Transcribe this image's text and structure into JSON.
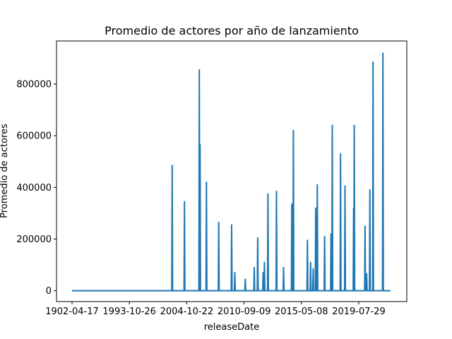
{
  "chart_data": {
    "type": "line",
    "title": "Promedio de actores por año de lanzamiento",
    "xlabel": "releaseDate",
    "ylabel": "Promedio de actores",
    "ylim": [
      -42000,
      967000
    ],
    "x_ticks": [
      "1902-04-17",
      "1993-10-26",
      "2004-10-22",
      "2010-09-09",
      "2015-05-08",
      "2019-07-29"
    ],
    "y_ticks": [
      0,
      200000,
      400000,
      600000,
      800000
    ],
    "y_tick_labels": [
      "0",
      "200000",
      "400000",
      "600000",
      "800000"
    ],
    "grid": false,
    "series": [
      {
        "color": "#1f77b4",
        "spikes": [
          {
            "x": 0.3145,
            "y": 485000
          },
          {
            "x": 0.353,
            "y": 345000
          },
          {
            "x": 0.3995,
            "y": 855000
          },
          {
            "x": 0.402,
            "y": 565000
          },
          {
            "x": 0.422,
            "y": 420000
          },
          {
            "x": 0.4605,
            "y": 265000
          },
          {
            "x": 0.501,
            "y": 255000
          },
          {
            "x": 0.511,
            "y": 70000
          },
          {
            "x": 0.544,
            "y": 45000
          },
          {
            "x": 0.572,
            "y": 90000
          },
          {
            "x": 0.583,
            "y": 205000
          },
          {
            "x": 0.6,
            "y": 70000
          },
          {
            "x": 0.604,
            "y": 110000
          },
          {
            "x": 0.615,
            "y": 375000
          },
          {
            "x": 0.642,
            "y": 385000
          },
          {
            "x": 0.664,
            "y": 90000
          },
          {
            "x": 0.69,
            "y": 335000
          },
          {
            "x": 0.695,
            "y": 620000
          },
          {
            "x": 0.739,
            "y": 195000
          },
          {
            "x": 0.749,
            "y": 110000
          },
          {
            "x": 0.757,
            "y": 85000
          },
          {
            "x": 0.765,
            "y": 320000
          },
          {
            "x": 0.77,
            "y": 410000
          },
          {
            "x": 0.793,
            "y": 210000
          },
          {
            "x": 0.813,
            "y": 220000
          },
          {
            "x": 0.817,
            "y": 640000
          },
          {
            "x": 0.843,
            "y": 530000
          },
          {
            "x": 0.857,
            "y": 405000
          },
          {
            "x": 0.884,
            "y": 320000
          },
          {
            "x": 0.886,
            "y": 640000
          },
          {
            "x": 0.92,
            "y": 250000
          },
          {
            "x": 0.925,
            "y": 65000
          },
          {
            "x": 0.935,
            "y": 390000
          },
          {
            "x": 0.945,
            "y": 885000
          },
          {
            "x": 0.976,
            "y": 920000
          }
        ]
      }
    ]
  }
}
